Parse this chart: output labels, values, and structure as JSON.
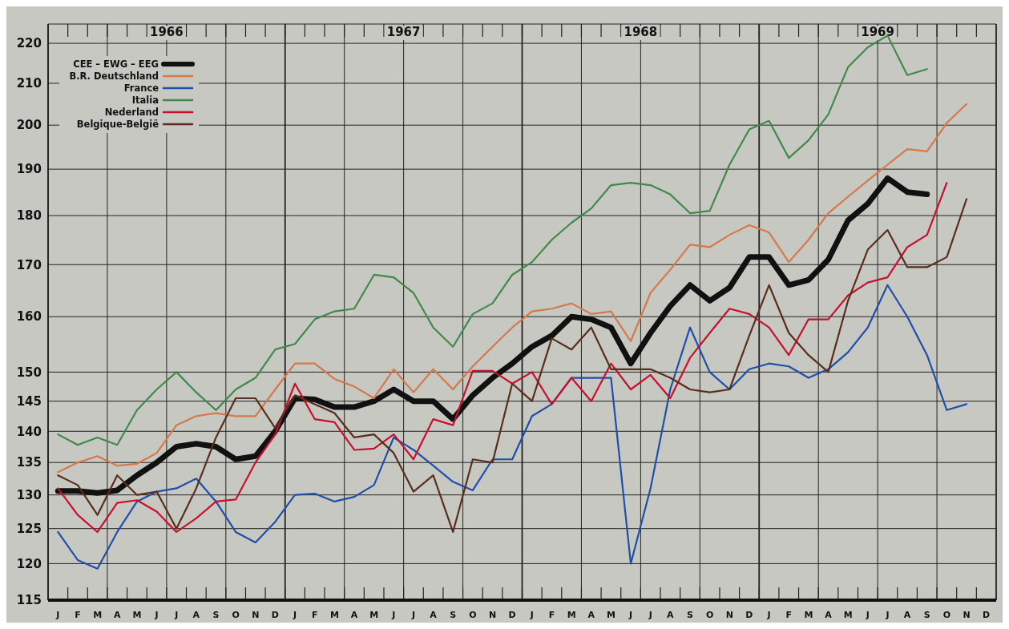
{
  "chart_data": {
    "type": "line",
    "categories": [
      "J",
      "F",
      "M",
      "A",
      "M",
      "J",
      "J",
      "A",
      "S",
      "O",
      "N",
      "D",
      "J",
      "F",
      "M",
      "A",
      "M",
      "J",
      "J",
      "A",
      "S",
      "O",
      "N",
      "D",
      "J",
      "F",
      "M",
      "A",
      "M",
      "J",
      "J",
      "A",
      "S",
      "O",
      "N",
      "D",
      "J",
      "F",
      "M",
      "A",
      "M",
      "J",
      "J",
      "A",
      "S",
      "O",
      "N",
      "D"
    ],
    "annotations": [
      "1966",
      "1967",
      "1968",
      "1969"
    ],
    "log": true,
    "ylim": [
      115,
      225
    ],
    "yticks": [
      115,
      120,
      125,
      130,
      135,
      140,
      145,
      150,
      160,
      170,
      180,
      190,
      200,
      210,
      220
    ],
    "grid": true,
    "legend": "top left",
    "line_style": "solid",
    "marker": "none",
    "series": [
      {
        "name": "CEE – EWG – EEG",
        "color": "#111111",
        "values": [
          130.6,
          130.6,
          130.3,
          130.7,
          133,
          135,
          137.5,
          138,
          137.5,
          135.5,
          136,
          140,
          145.5,
          145.3,
          144,
          144,
          145,
          147,
          145,
          145,
          142,
          146,
          149,
          151.5,
          154.5,
          156.5,
          160,
          159.5,
          158,
          151.5,
          157,
          162,
          166,
          163,
          165.5,
          171.5,
          171.5,
          166,
          167,
          171,
          179,
          182.5,
          188,
          185,
          184.5,
          null,
          null,
          null
        ]
      },
      {
        "name": "B.R. Deutschland",
        "color": "#d5784a",
        "values": [
          133.5,
          135,
          136,
          134.5,
          134.8,
          136.5,
          141,
          142.5,
          143,
          142.5,
          142.5,
          147,
          151.5,
          151.5,
          148.8,
          147.5,
          145.5,
          150.5,
          146.5,
          150.5,
          147,
          151,
          154.5,
          158,
          161,
          161.5,
          162.5,
          160.5,
          161,
          155.5,
          164.5,
          169,
          174,
          173.5,
          176,
          178,
          176.5,
          170.5,
          175,
          180.5,
          184,
          187.5,
          191,
          194.5,
          194,
          200.5,
          205,
          null
        ]
      },
      {
        "name": "France",
        "color": "#1f4fa8",
        "values": [
          124.5,
          120.5,
          119.3,
          124.5,
          129,
          130.5,
          131,
          132.5,
          129,
          124.5,
          123,
          126,
          130,
          130.2,
          129,
          129.7,
          131.5,
          139,
          137,
          134.5,
          132,
          130.7,
          135.5,
          135.5,
          142.5,
          144.5,
          149,
          149,
          149,
          120,
          131,
          147,
          158,
          150,
          147,
          150.5,
          151.5,
          151,
          149,
          150.5,
          153.5,
          158,
          166,
          160,
          153,
          143.5,
          144.5,
          null
        ]
      },
      {
        "name": "Italia",
        "color": "#3f8a4a",
        "values": [
          139.5,
          137.8,
          139,
          137.8,
          143.5,
          147,
          150,
          146.5,
          143.5,
          147,
          149,
          154,
          155,
          159.5,
          161,
          161.5,
          168,
          167.5,
          164.5,
          158,
          154.5,
          160.5,
          162.5,
          168,
          170.5,
          175,
          178.5,
          181.5,
          186.5,
          187,
          186.5,
          184.5,
          180.5,
          181,
          191,
          199,
          201,
          192.5,
          196.5,
          202.5,
          214,
          219,
          222,
          212,
          213.5,
          null,
          null,
          null
        ]
      },
      {
        "name": "Nederland",
        "color": "#c8102e",
        "values": [
          131,
          127,
          124.5,
          128.8,
          129.2,
          127.5,
          124.5,
          126.5,
          129,
          129.3,
          135,
          139.5,
          148,
          142,
          141.5,
          137,
          137.2,
          139.5,
          135.5,
          142,
          141,
          150.2,
          150.2,
          148,
          150,
          144.5,
          149,
          145,
          151.5,
          147,
          149.5,
          145.5,
          152.5,
          157,
          161.5,
          160.5,
          158,
          153,
          159.5,
          159.5,
          164,
          166.5,
          167.5,
          173.5,
          176,
          187,
          null,
          null
        ]
      },
      {
        "name": "Belgique-België",
        "color": "#5a2e1c",
        "values": [
          133,
          131.5,
          127,
          133,
          130,
          130.5,
          125,
          131,
          139,
          145.5,
          145.5,
          140.5,
          146,
          144.5,
          143,
          139,
          139.5,
          136.5,
          130.5,
          133,
          124.5,
          135.5,
          135,
          148,
          145,
          156,
          154,
          158,
          150.5,
          150.5,
          150.5,
          149,
          147,
          146.5,
          147,
          156.5,
          166,
          157,
          153,
          150,
          163,
          173,
          177,
          169.5,
          169.5,
          171.5,
          183.5,
          null
        ]
      }
    ]
  }
}
